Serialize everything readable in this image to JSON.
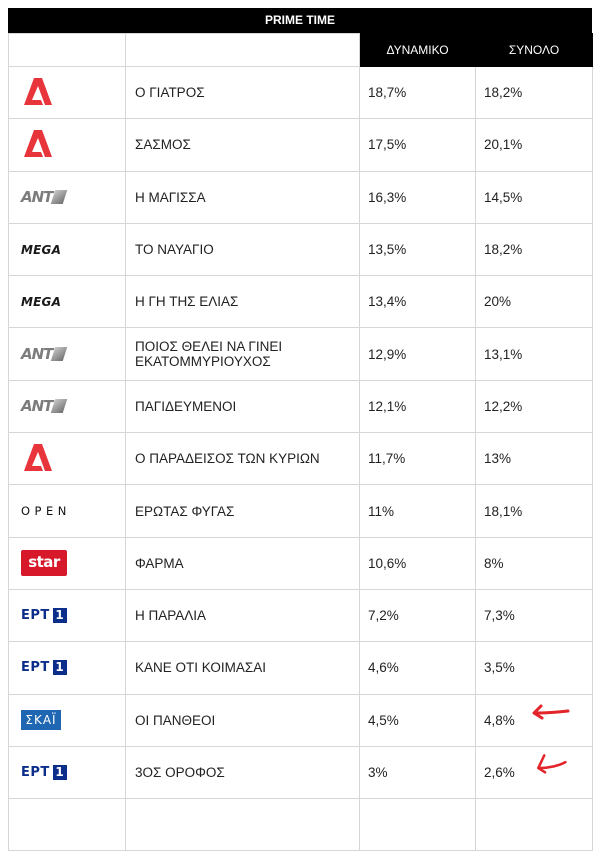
{
  "table": {
    "title": "PRIME TIME",
    "columns": {
      "channel": "",
      "show": "",
      "dynamic": "ΔΥΝΑΜΙΚΟ",
      "total": "ΣΥΝΟΛΟ"
    },
    "rows": [
      {
        "channel": "alpha",
        "show": "Ο ΓΙΑΤΡΟΣ",
        "dynamic": "18,7%",
        "total": "18,2%"
      },
      {
        "channel": "alpha",
        "show": "ΣΑΣΜΟΣ",
        "dynamic": "17,5%",
        "total": "20,1%"
      },
      {
        "channel": "ant1",
        "show": "Η ΜΑΓΙΣΣΑ",
        "dynamic": "16,3%",
        "total": "14,5%"
      },
      {
        "channel": "mega",
        "show": "ΤΟ ΝΑΥΑΓΙΟ",
        "dynamic": "13,5%",
        "total": "18,2%"
      },
      {
        "channel": "mega",
        "show": "Η ΓΗ ΤΗΣ ΕΛΙΑΣ",
        "dynamic": "13,4%",
        "total": "20%"
      },
      {
        "channel": "ant1",
        "show": "ΠΟΙΟΣ ΘΕΛΕΙ ΝΑ ΓΙΝΕΙ ΕΚΑΤΟΜΜΥΡΙΟΥΧΟΣ",
        "dynamic": "12,9%",
        "total": "13,1%"
      },
      {
        "channel": "ant1",
        "show": "ΠΑΓΙΔΕΥΜΕΝΟΙ",
        "dynamic": "12,1%",
        "total": "12,2%"
      },
      {
        "channel": "alpha",
        "show": "Ο ΠΑΡΑΔΕΙΣΟΣ ΤΩΝ ΚΥΡΙΩΝ",
        "dynamic": "11,7%",
        "total": "13%"
      },
      {
        "channel": "open",
        "show": "ΕΡΩΤΑΣ ΦΥΓΑΣ",
        "dynamic": "11%",
        "total": "18,1%"
      },
      {
        "channel": "star",
        "show": "ΦΑΡΜΑ",
        "dynamic": "10,6%",
        "total": "8%"
      },
      {
        "channel": "ert1",
        "show": "Η ΠΑΡΑΛΙΑ",
        "dynamic": "7,2%",
        "total": "7,3%"
      },
      {
        "channel": "ert1",
        "show": "ΚΑΝΕ ΟΤΙ ΚΟΙΜΑΣΑΙ",
        "dynamic": "4,6%",
        "total": "3,5%"
      },
      {
        "channel": "skai",
        "show": "ΟΙ ΠΑΝΘΕΟΙ",
        "dynamic": "4,5%",
        "total": "4,8%"
      },
      {
        "channel": "ert1",
        "show": "3ΟΣ ΟΡΟΦΟΣ",
        "dynamic": "3%",
        "total": "2,6%"
      }
    ]
  },
  "logos": {
    "ant1_text": "ANT",
    "mega_text": "MEGA",
    "open_text": "OPEN",
    "star_text": "star",
    "ert_text": "ΕΡΤ",
    "ert_number": "1",
    "skai_text": "ΣΚΑΪ"
  },
  "annotations": {
    "arrow_color": "#e3242b",
    "arrows": [
      "skai-row-arrow",
      "ert1-last-row-arrow"
    ]
  },
  "colors": {
    "header_bg": "#000000",
    "alpha_red": "#e8343b",
    "star_red": "#d7182a",
    "ert_blue": "#0b2e8a",
    "skai_blue": "#1f67b3"
  }
}
